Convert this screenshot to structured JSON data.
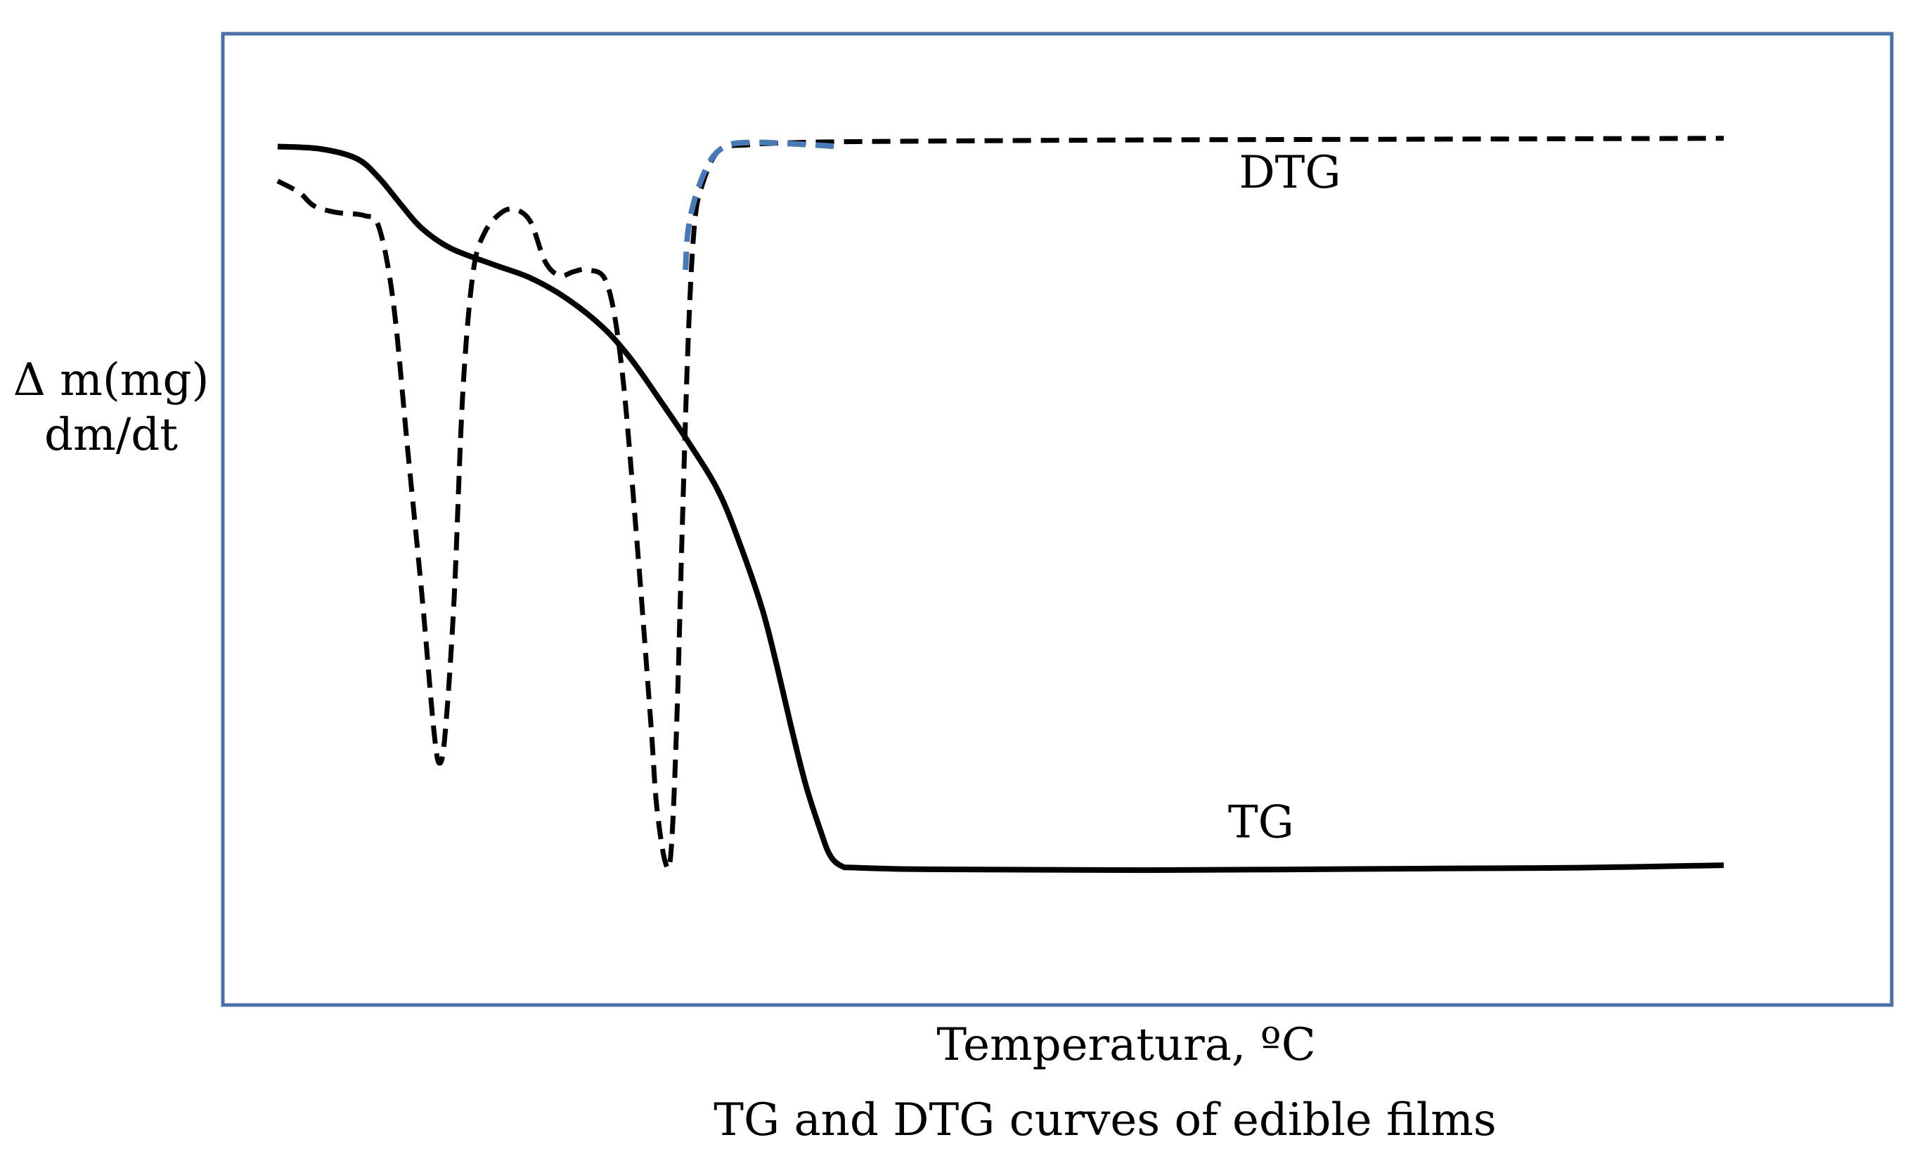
{
  "chart_data": {
    "type": "line",
    "title": "TG and DTG curves of edible films",
    "xlabel": "Temperatura, ºC",
    "ylabel_lines": [
      "Δ m(mg)",
      "dm/dt"
    ],
    "x_ticks": [],
    "y_ticks": [],
    "grid": false,
    "legend": "none",
    "axis_units": "relative (0-1000), no numeric scale printed",
    "xlim": [
      0,
      1000
    ],
    "ylim": [
      0,
      1000
    ],
    "series": [
      {
        "name": "TG",
        "label": "TG",
        "style": "solid",
        "color": "#000000",
        "points": [
          [
            0,
            950
          ],
          [
            30,
            947
          ],
          [
            55,
            935
          ],
          [
            70,
            912
          ],
          [
            85,
            880
          ],
          [
            100,
            850
          ],
          [
            120,
            826
          ],
          [
            150,
            806
          ],
          [
            175,
            790
          ],
          [
            200,
            765
          ],
          [
            225,
            730
          ],
          [
            245,
            690
          ],
          [
            265,
            640
          ],
          [
            285,
            588
          ],
          [
            305,
            530
          ],
          [
            320,
            465
          ],
          [
            335,
            388
          ],
          [
            345,
            320
          ],
          [
            355,
            245
          ],
          [
            365,
            175
          ],
          [
            375,
            120
          ],
          [
            382,
            88
          ],
          [
            390,
            75
          ],
          [
            400,
            73
          ],
          [
            450,
            71
          ],
          [
            600,
            70
          ],
          [
            800,
            72
          ],
          [
            900,
            73
          ],
          [
            1000,
            76
          ]
        ]
      },
      {
        "name": "DTG",
        "label": "DTG",
        "style": "dashed",
        "color": "#000000",
        "highlight_color": "#4a7ab5",
        "points": [
          [
            0,
            908
          ],
          [
            15,
            894
          ],
          [
            25,
            878
          ],
          [
            40,
            870
          ],
          [
            60,
            866
          ],
          [
            70,
            852
          ],
          [
            80,
            760
          ],
          [
            90,
            580
          ],
          [
            100,
            400
          ],
          [
            108,
            240
          ],
          [
            112,
            200
          ],
          [
            116,
            240
          ],
          [
            122,
            400
          ],
          [
            128,
            650
          ],
          [
            135,
            795
          ],
          [
            143,
            845
          ],
          [
            155,
            870
          ],
          [
            165,
            873
          ],
          [
            175,
            858
          ],
          [
            185,
            810
          ],
          [
            195,
            793
          ],
          [
            205,
            798
          ],
          [
            215,
            800
          ],
          [
            228,
            782
          ],
          [
            238,
            680
          ],
          [
            248,
            480
          ],
          [
            258,
            250
          ],
          [
            262,
            150
          ],
          [
            268,
            80
          ],
          [
            272,
            92
          ],
          [
            276,
            250
          ],
          [
            280,
            500
          ],
          [
            284,
            720
          ],
          [
            288,
            850
          ],
          [
            293,
            900
          ],
          [
            305,
            945
          ],
          [
            325,
            952
          ],
          [
            345,
            954
          ],
          [
            400,
            956
          ],
          [
            600,
            958
          ],
          [
            800,
            959
          ],
          [
            1000,
            960
          ]
        ],
        "highlight_points": [
          [
            282,
            800
          ],
          [
            284,
            850
          ],
          [
            290,
            895
          ],
          [
            300,
            935
          ],
          [
            312,
            952
          ],
          [
            330,
            955
          ],
          [
            348,
            954
          ],
          [
            370,
            952
          ],
          [
            387,
            950
          ]
        ]
      }
    ],
    "annotations": [
      {
        "text": "DTG",
        "near_series": "DTG",
        "at": [
          700,
          900
        ]
      },
      {
        "text": "TG",
        "near_series": "TG",
        "at": [
          680,
          110
        ]
      }
    ]
  }
}
